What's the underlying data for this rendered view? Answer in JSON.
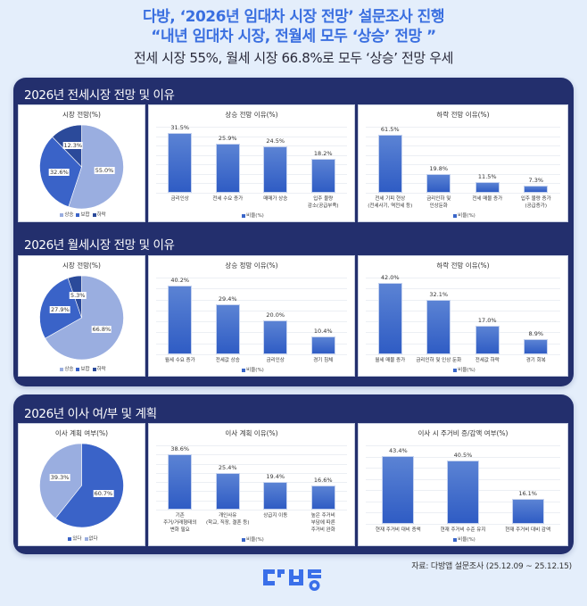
{
  "header": {
    "title_line1": "다방, ‘2026년 임대차 시장 전망’ 설문조사 진행",
    "title_line2": "“내년 임대차 시장, 전월세 모두 ‘상승’ 전망 ”",
    "subtitle": "전세 시장 55%, 월세 시장 66.8%로 모두 ‘상승’ 전망 우세"
  },
  "sections": [
    {
      "title": "2026년 전세시장 전망 및 이유"
    },
    {
      "title": "2026년 월세시장 전망 및 이유"
    },
    {
      "title": "2026년 이사 여/부 및 계획"
    }
  ],
  "legend_bar": "비율(%)",
  "colors": {
    "navy_panel": "#232f6d",
    "title_blue": "#3a6fe0",
    "bar": "#3a66c9",
    "pie_light": "#9aaee0",
    "pie_mid": "#3a63c8",
    "pie_dark": "#2b4a9a",
    "background": "#e4eefb"
  },
  "chart_data": [
    {
      "type": "pie",
      "title": "시장 전망(%)",
      "categories": [
        "상승",
        "보합",
        "하락"
      ],
      "values": [
        55.0,
        32.6,
        12.3
      ],
      "labels": [
        "55.0%",
        "32.6%",
        "12.3%"
      ],
      "legend_position": "bottom"
    },
    {
      "type": "bar",
      "title": "상승 전망 이유(%)",
      "categories": [
        "금리인상",
        "전세 수요 증가",
        "매매가 상승",
        "입주 물량\n감소(공급부족)"
      ],
      "values": [
        31.5,
        25.9,
        24.5,
        18.2
      ],
      "labels": [
        "31.5%",
        "25.9%",
        "24.5%",
        "18.2%"
      ],
      "legend": "비율(%)",
      "ylim": [
        0,
        35
      ]
    },
    {
      "type": "bar",
      "title": "하락 전망 이유(%)",
      "categories": [
        "전세 기피 현상\n(전세사기, 역전세 등)",
        "금리인하 및\n인상둔화",
        "전세 매물 증가",
        "입주 물량 증가\n(공급증가)"
      ],
      "values": [
        61.5,
        19.8,
        11.5,
        7.3
      ],
      "labels": [
        "61.5%",
        "19.8%",
        "11.5%",
        "7.3%"
      ],
      "legend": "비율(%)",
      "ylim": [
        0,
        70
      ]
    },
    {
      "type": "pie",
      "title": "시장 전망(%)",
      "categories": [
        "상승",
        "보합",
        "하락"
      ],
      "values": [
        66.8,
        27.9,
        5.3
      ],
      "labels": [
        "66.8%",
        "27.9%",
        "5.3%"
      ],
      "legend_position": "bottom"
    },
    {
      "type": "bar",
      "title": "상승 정망 이유(%)",
      "categories": [
        "월세 수요 증가",
        "전세값 상승",
        "금리인상",
        "경기 침체"
      ],
      "values": [
        40.2,
        29.4,
        20.0,
        10.4
      ],
      "labels": [
        "40.2%",
        "29.4%",
        "20.0%",
        "10.4%"
      ],
      "legend": "비율(%)",
      "ylim": [
        0,
        45
      ]
    },
    {
      "type": "bar",
      "title": "하락 전망 이유(%)",
      "categories": [
        "월세 매물 증가",
        "금리인하 및 인상 둔화",
        "전세값 하락",
        "경기 회복"
      ],
      "values": [
        42.0,
        32.1,
        17.0,
        8.9
      ],
      "labels": [
        "42.0%",
        "32.1%",
        "17.0%",
        "8.9%"
      ],
      "legend": "비율(%)",
      "ylim": [
        0,
        45
      ]
    },
    {
      "type": "pie",
      "title": "이사 계획 여부(%)",
      "categories": [
        "있다",
        "없다"
      ],
      "values": [
        60.7,
        39.3
      ],
      "labels": [
        "60.7%",
        "39.3%"
      ],
      "legend_position": "bottom"
    },
    {
      "type": "bar",
      "title": "이사 계획 이유(%)",
      "categories": [
        "기존\n주거/거래형태의\n변화 필요",
        "개인사유\n(학교, 직장, 결혼 등)",
        "상급지 이동",
        "높은 주거비\n부담에 따른\n주거비 완화"
      ],
      "values": [
        38.6,
        25.4,
        19.4,
        16.6
      ],
      "labels": [
        "38.6%",
        "25.4%",
        "19.4%",
        "16.6%"
      ],
      "legend": "비율(%)",
      "ylim": [
        0,
        45
      ]
    },
    {
      "type": "bar",
      "title": "이사 시 주거비 증/감액 여부(%)",
      "categories": [
        "현재 주거비 대비 증액",
        "현재 주거비 수준 유지",
        "현재 주거비 대비 감액"
      ],
      "values": [
        43.4,
        40.5,
        16.1
      ],
      "labels": [
        "43.4%",
        "40.5%",
        "16.1%"
      ],
      "legend": "비율(%)",
      "ylim": [
        0,
        50
      ]
    }
  ],
  "footer": {
    "source": "자료: 다방앱 설문조사 (25.12.09 ~ 25.12.15)",
    "logo_alt": "다방"
  }
}
